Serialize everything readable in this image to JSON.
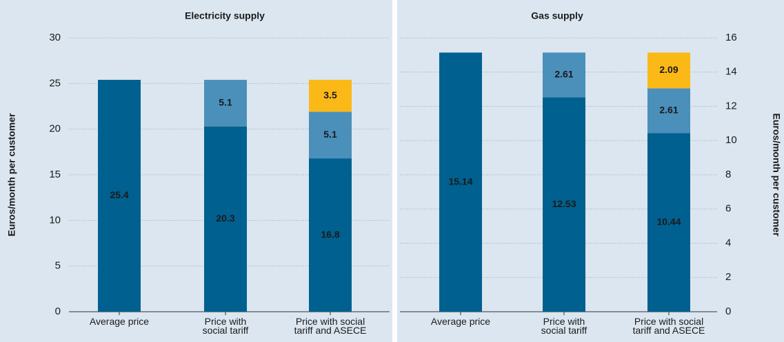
{
  "chart_data": [
    {
      "type": "bar",
      "stacked": true,
      "title": "Electricity supply",
      "y_label": "Euros/month per customer",
      "y_axis_side": "left",
      "categories": [
        "Average price",
        "Price with\nsocial tariff",
        "Price with social\ntariff and ASECE"
      ],
      "series": [
        {
          "color": "#00608f",
          "values": [
            25.4,
            20.3,
            16.8
          ]
        },
        {
          "color": "#4a90ba",
          "values": [
            null,
            5.1,
            5.1
          ]
        },
        {
          "color": "#fbb917",
          "values": [
            null,
            null,
            3.5
          ]
        }
      ],
      "ylim": [
        0,
        30
      ],
      "yticks": [
        0,
        5,
        10,
        15,
        20,
        25,
        30
      ],
      "grid": true
    },
    {
      "type": "bar",
      "stacked": true,
      "title": "Gas supply",
      "y_label": "Euros/month per customer",
      "y_axis_side": "right",
      "categories": [
        "Average price",
        "Price with\nsocial tariff",
        "Price with social\ntariff and ASECE"
      ],
      "series": [
        {
          "color": "#00608f",
          "values": [
            15.14,
            12.53,
            10.44
          ]
        },
        {
          "color": "#4a90ba",
          "values": [
            null,
            2.61,
            2.61
          ]
        },
        {
          "color": "#fbb917",
          "values": [
            null,
            null,
            2.09
          ]
        }
      ],
      "ylim": [
        0,
        16
      ],
      "yticks": [
        0,
        2,
        4,
        6,
        8,
        10,
        12,
        14,
        16
      ],
      "grid": true
    }
  ]
}
